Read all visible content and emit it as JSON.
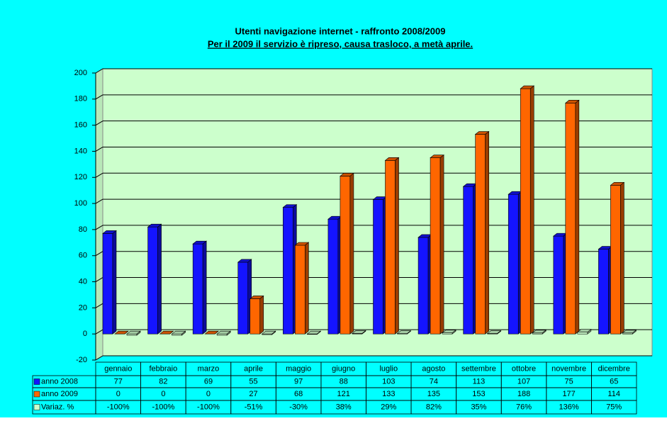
{
  "chart_data": {
    "type": "bar",
    "title": "Utenti navigazione internet - raffronto 2008/2009",
    "subtitle": "Per il 2009 il servizio è ripreso, causa trasloco, a metà aprile.",
    "categories": [
      "gennaio",
      "febbraio",
      "marzo",
      "aprile",
      "maggio",
      "giugno",
      "luglio",
      "agosto",
      "settembre",
      "ottobre",
      "novembre",
      "dicembre"
    ],
    "series": [
      {
        "name": "anno  2008",
        "color": "#1414ff",
        "values": [
          77,
          82,
          69,
          55,
          97,
          88,
          103,
          74,
          113,
          107,
          75,
          65
        ]
      },
      {
        "name": "anno 2009",
        "color": "#ff6600",
        "values": [
          0,
          0,
          0,
          27,
          68,
          121,
          133,
          135,
          153,
          188,
          177,
          114
        ]
      },
      {
        "name": "Variaz. %",
        "color": "#ccffcc",
        "values": [
          -1,
          -1,
          -1,
          -0.51,
          -0.3,
          0.38,
          0.29,
          0.82,
          0.35,
          0.76,
          1.36,
          0.75
        ],
        "value_labels": [
          "-100%",
          "-100%",
          "-100%",
          "-51%",
          "-30%",
          "38%",
          "29%",
          "82%",
          "35%",
          "76%",
          "136%",
          "75%"
        ]
      }
    ],
    "ylim": [
      -20,
      200
    ],
    "yticks": [
      -20,
      0,
      20,
      40,
      60,
      80,
      100,
      120,
      140,
      160,
      180,
      200
    ],
    "grid": true,
    "plot_background": "#ccffcc",
    "background": "#00ffff"
  }
}
